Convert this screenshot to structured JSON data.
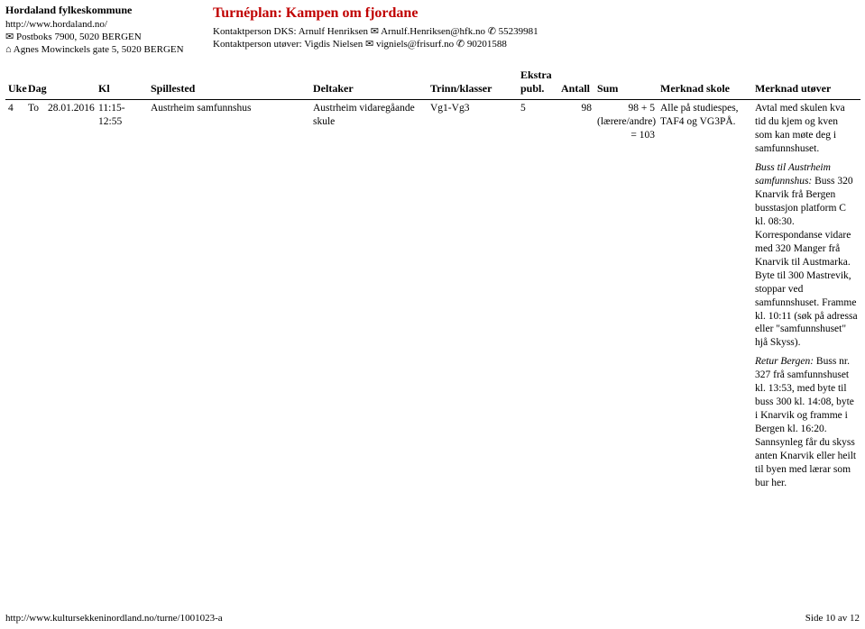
{
  "header": {
    "org_name": "Hordaland fylkeskommune",
    "org_url": "http://www.hordaland.no/",
    "org_post": "✉ Postboks 7900, 5020 BERGEN",
    "org_addr": "⌂ Agnes Mowinckels gate 5, 5020 BERGEN",
    "title": "Turnéplan: Kampen om fjordane",
    "contact1": "Kontaktperson DKS: Arnulf Henriksen ✉ Arnulf.Henriksen@hfk.no ✆ 55239981",
    "contact2": "Kontaktperson utøver: Vigdis Nielsen ✉ vigniels@frisurf.no ✆ 90201588"
  },
  "columns": {
    "uke": "Uke",
    "dag": "Dag",
    "kl": "Kl",
    "spillested": "Spillested",
    "deltaker": "Deltaker",
    "trinn": "Trinn/klasser",
    "ekstra": "Ekstra publ.",
    "antall": "Antall",
    "sum": "Sum",
    "mskole": "Merknad skole",
    "mutover": "Merknad utøver"
  },
  "row": {
    "uke": "4",
    "dag": "To",
    "dato": "28.01.2016",
    "kl": "11:15-12:55",
    "spillested": "Austrheim samfunnshus",
    "deltaker": "Austrheim vidaregåande skule",
    "trinn": "Vg1-Vg3",
    "ekstra": "5",
    "antall": "98",
    "sum_line1": "98 + 5",
    "sum_line2": "(lærere/andre)",
    "sum_line3": "= 103",
    "mskole": "Alle på studiespes, TAF4 og VG3PÅ.",
    "mutover_p1": "Avtal med skulen kva tid du kjem og kven som kan møte deg i samfunnshuset.",
    "mutover_p2_lead": "Buss til Austrheim samfunnshus:",
    "mutover_p2_rest": " Buss 320 Knarvik frå Bergen busstasjon platform C kl. 08:30. Korrespondanse vidare med 320 Manger frå Knarvik til Austmarka. Byte til 300 Mastrevik, stoppar ved samfunnshuset. Framme kl. 10:11 (søk på adressa eller \"samfunnshuset\" hjå Skyss).",
    "mutover_p3_lead": "Retur Bergen:",
    "mutover_p3_rest": " Buss nr. 327 frå samfunnshuset kl. 13:53, med byte til buss 300 kl. 14:08, byte i Knarvik og framme i Bergen kl. 16:20. Sannsynleg får du skyss anten Knarvik eller heilt til byen med lærar som bur her."
  },
  "footer": {
    "url": "http://www.kultursekkeninordland.no/turne/1001023-a",
    "page": "Side 10 av 12"
  }
}
